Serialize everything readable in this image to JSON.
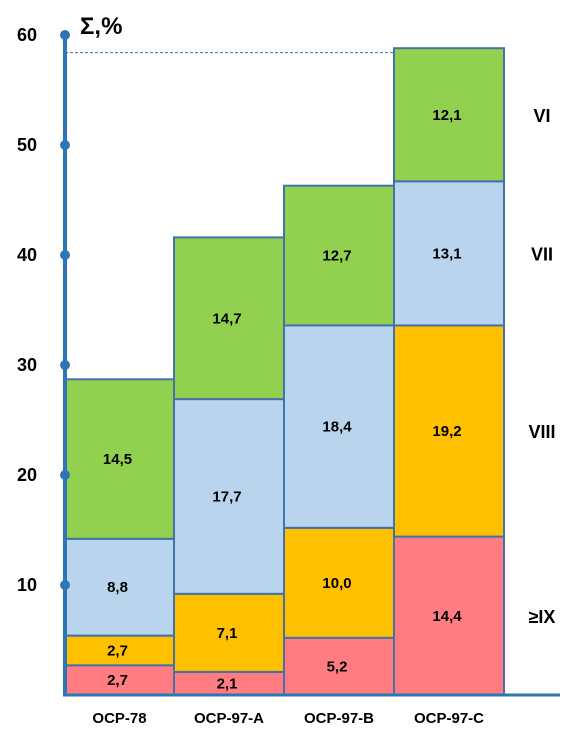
{
  "chart_data": {
    "type": "bar",
    "stacked": true,
    "ylabel": "Σ,%",
    "ylim": [
      0,
      60
    ],
    "yticks": [
      "10",
      "20",
      "30",
      "40",
      "50",
      "60"
    ],
    "categories": [
      "OCP-78",
      "OCP-97-A",
      "OCP-97-B",
      "OCP-97-C"
    ],
    "series": [
      {
        "name": "≥IX",
        "color": "#ff7c80",
        "values": [
          2.7,
          2.1,
          5.2,
          14.4
        ],
        "labels": [
          "2,7",
          "2,1",
          "5,2",
          "14,4"
        ]
      },
      {
        "name": "VIII",
        "color": "#ffc000",
        "values": [
          2.7,
          7.1,
          10.0,
          19.2
        ],
        "labels": [
          "2,7",
          "7,1",
          "10,0",
          "19,2"
        ]
      },
      {
        "name": "VII",
        "color": "#b9d5ee",
        "values": [
          8.8,
          17.7,
          18.4,
          13.1
        ],
        "labels": [
          "8,8",
          "17,7",
          "18,4",
          "13,1"
        ]
      },
      {
        "name": "VI",
        "color": "#92d050",
        "values": [
          14.5,
          14.7,
          12.7,
          12.1
        ],
        "labels": [
          "14,5",
          "14,7",
          "12,7",
          "12,1"
        ]
      }
    ],
    "reference_line": 58.4,
    "axis_color": "#2e75b6",
    "border_color": "#4472a8",
    "grid": false
  }
}
